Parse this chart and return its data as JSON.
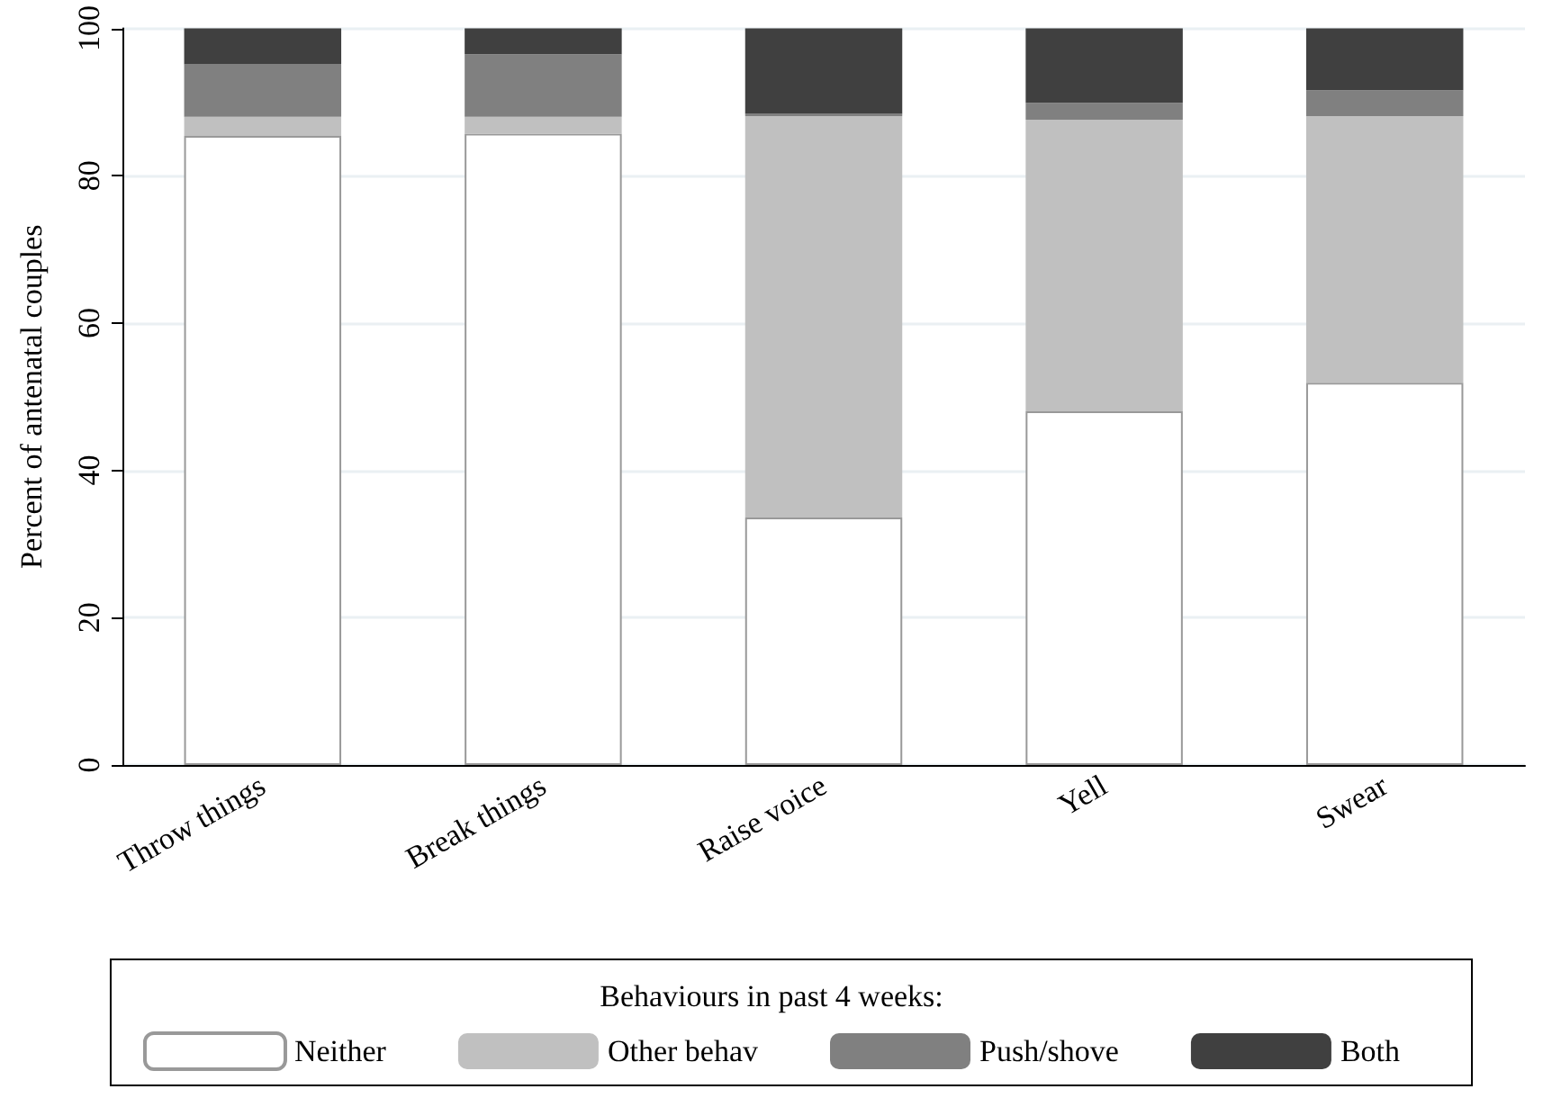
{
  "chart_data": {
    "type": "bar",
    "stacked": true,
    "ylabel": "Percent of antenatal couples",
    "legend_title": "Behaviours in past 4 weeks:",
    "categories": [
      "Throw things",
      "Break things",
      "Raise voice",
      "Yell",
      "Swear"
    ],
    "series": [
      {
        "name": "Neither",
        "color": "#ffffff",
        "values": [
          85.4,
          85.7,
          33.6,
          48.0,
          51.9
        ]
      },
      {
        "name": "Other behav",
        "color": "#c0c0c0",
        "values": [
          2.6,
          2.3,
          54.5,
          39.6,
          36.2
        ]
      },
      {
        "name": "Push/shove",
        "color": "#808080",
        "values": [
          7.1,
          8.5,
          0.3,
          2.3,
          3.5
        ]
      },
      {
        "name": "Both",
        "color": "#404040",
        "values": [
          4.9,
          3.5,
          11.6,
          10.1,
          8.4
        ]
      }
    ],
    "ylim": [
      0,
      100
    ],
    "yticks": [
      0,
      20,
      40,
      60,
      80,
      100
    ],
    "grid": "y",
    "legend": "bottom"
  }
}
